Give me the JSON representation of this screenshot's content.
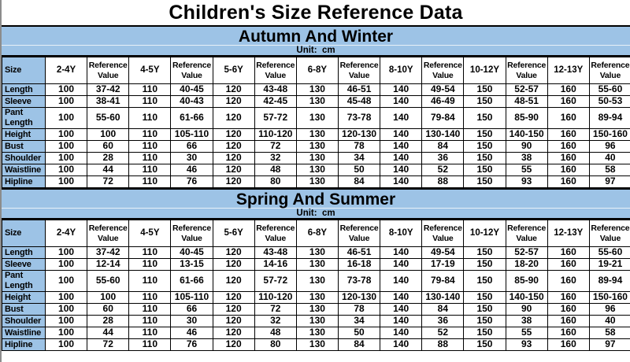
{
  "title": "Children's Size Reference Data",
  "colors": {
    "header_blue": "#9DC3E6",
    "cell_background": "#FFFFFF",
    "text": "#000000",
    "border": "#000000"
  },
  "sections": [
    {
      "name": "Autumn And Winter",
      "unit": "Unit:  cm",
      "columns": [
        "Size",
        "2-4Y",
        "Reference Value",
        "4-5Y",
        "Reference Value",
        "5-6Y",
        "Reference Value",
        "6-8Y",
        "Reference Value",
        "8-10Y",
        "Reference Value",
        "10-12Y",
        "Reference Value",
        "12-13Y",
        "Reference Value"
      ],
      "rows": [
        {
          "label": "Length",
          "values": [
            "100",
            "37-42",
            "110",
            "40-45",
            "120",
            "43-48",
            "130",
            "46-51",
            "140",
            "49-54",
            "150",
            "52-57",
            "160",
            "55-60"
          ]
        },
        {
          "label": "Sleeve",
          "values": [
            "100",
            "38-41",
            "110",
            "40-43",
            "120",
            "42-45",
            "130",
            "45-48",
            "140",
            "46-49",
            "150",
            "48-51",
            "160",
            "50-53"
          ]
        },
        {
          "label": "Pant Length",
          "values": [
            "100",
            "55-60",
            "110",
            "61-66",
            "120",
            "57-72",
            "130",
            "73-78",
            "140",
            "79-84",
            "150",
            "85-90",
            "160",
            "89-94"
          ]
        },
        {
          "label": "Height",
          "values": [
            "100",
            "100",
            "110",
            "105-110",
            "120",
            "110-120",
            "130",
            "120-130",
            "140",
            "130-140",
            "150",
            "140-150",
            "160",
            "150-160"
          ]
        },
        {
          "label": "Bust",
          "values": [
            "100",
            "60",
            "110",
            "66",
            "120",
            "72",
            "130",
            "78",
            "140",
            "84",
            "150",
            "90",
            "160",
            "96"
          ]
        },
        {
          "label": "Shoulder",
          "values": [
            "100",
            "28",
            "110",
            "30",
            "120",
            "32",
            "130",
            "34",
            "140",
            "36",
            "150",
            "38",
            "160",
            "40"
          ]
        },
        {
          "label": "Waistline",
          "values": [
            "100",
            "44",
            "110",
            "46",
            "120",
            "48",
            "130",
            "50",
            "140",
            "52",
            "150",
            "55",
            "160",
            "58"
          ]
        },
        {
          "label": "Hipline",
          "values": [
            "100",
            "72",
            "110",
            "76",
            "120",
            "80",
            "130",
            "84",
            "140",
            "88",
            "150",
            "93",
            "160",
            "97"
          ]
        }
      ]
    },
    {
      "name": "Spring And Summer",
      "unit": "Unit:  cm",
      "columns": [
        "Size",
        "2-4Y",
        "Reference Value",
        "4-5Y",
        "Reference Value",
        "5-6Y",
        "Reference Value",
        "6-8Y",
        "Reference Value",
        "8-10Y",
        "Reference Value",
        "10-12Y",
        "Reference Value",
        "12-13Y",
        "Reference Value"
      ],
      "rows": [
        {
          "label": "Length",
          "values": [
            "100",
            "37-42",
            "110",
            "40-45",
            "120",
            "43-48",
            "130",
            "46-51",
            "140",
            "49-54",
            "150",
            "52-57",
            "160",
            "55-60"
          ]
        },
        {
          "label": "Sleeve",
          "values": [
            "100",
            "12-14",
            "110",
            "13-15",
            "120",
            "14-16",
            "130",
            "16-18",
            "140",
            "17-19",
            "150",
            "18-20",
            "160",
            "19-21"
          ]
        },
        {
          "label": "Pant Length",
          "values": [
            "100",
            "55-60",
            "110",
            "61-66",
            "120",
            "57-72",
            "130",
            "73-78",
            "140",
            "79-84",
            "150",
            "85-90",
            "160",
            "89-94"
          ]
        },
        {
          "label": "Height",
          "values": [
            "100",
            "100",
            "110",
            "105-110",
            "120",
            "110-120",
            "130",
            "120-130",
            "140",
            "130-140",
            "150",
            "140-150",
            "160",
            "150-160"
          ]
        },
        {
          "label": "Bust",
          "values": [
            "100",
            "60",
            "110",
            "66",
            "120",
            "72",
            "130",
            "78",
            "140",
            "84",
            "150",
            "90",
            "160",
            "96"
          ]
        },
        {
          "label": "Shoulder",
          "values": [
            "100",
            "28",
            "110",
            "30",
            "120",
            "32",
            "130",
            "34",
            "140",
            "36",
            "150",
            "38",
            "160",
            "40"
          ]
        },
        {
          "label": "Waistline",
          "values": [
            "100",
            "44",
            "110",
            "46",
            "120",
            "48",
            "130",
            "50",
            "140",
            "52",
            "150",
            "55",
            "160",
            "58"
          ]
        },
        {
          "label": "Hipline",
          "values": [
            "100",
            "72",
            "110",
            "76",
            "120",
            "80",
            "130",
            "84",
            "140",
            "88",
            "150",
            "93",
            "160",
            "97"
          ]
        }
      ]
    }
  ]
}
